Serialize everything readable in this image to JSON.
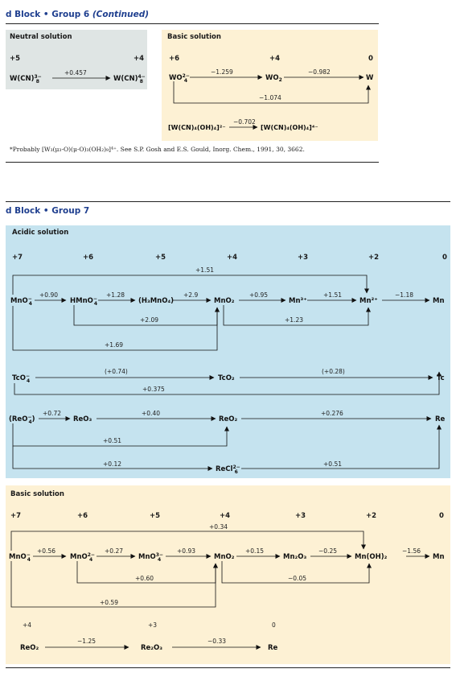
{
  "header_top": {
    "prefix": "d Block",
    "bullet": "•",
    "group": "Group 6",
    "continued": "(Continued)"
  },
  "neutral": {
    "title": "Neutral solution",
    "states": [
      "+5",
      "+4"
    ],
    "species": [
      "W(CN)",
      "W(CN)"
    ],
    "potential": "+0.457"
  },
  "basic6": {
    "title": "Basic solution",
    "states": [
      "+6",
      "+4",
      "0"
    ],
    "species": [
      "WO",
      "WO",
      "W"
    ],
    "potentials": [
      "−1.259",
      "−0.982",
      "−1.074"
    ],
    "complex_left": "[W(CN)₄(OH)₄]²⁻",
    "complex_right": "[W(CN)₄(OH)₄]⁴⁻",
    "complex_potential": "−0.702"
  },
  "footnote": "*Probably [W₃(μ₃-O)(μ-O)₃(OH₂)₉]⁴⁺. See S.P. Gosh and E.S. Gould, Inorg. Chem., 1991, 30, 3662.",
  "header_bottom": {
    "prefix": "d Block",
    "bullet": "•",
    "group": "Group 7"
  },
  "acidic7": {
    "title": "Acidic solution",
    "states": [
      "+7",
      "+6",
      "+5",
      "+4",
      "+3",
      "+2",
      "0"
    ],
    "mn_species": [
      "MnO",
      "HMnO",
      "(H₃MnO₄)",
      "MnO₂",
      "Mn³⁺",
      "Mn²⁺",
      "Mn"
    ],
    "mn_potentials": [
      "+0.90",
      "+1.28",
      "+2.9",
      "+0.95",
      "+1.51",
      "−1.18"
    ],
    "mn_bypass": [
      "+1.51",
      "+2.09",
      "+1.23",
      "+1.69"
    ],
    "tc_species": [
      "TcO",
      "TcO₂",
      "Tc"
    ],
    "tc_potentials": [
      "(+0.74)",
      "(+0.28)",
      "+0.375"
    ],
    "re_species": [
      "(ReO",
      "ReO₃",
      "ReO₂",
      "Re",
      "ReCl"
    ],
    "re_potentials": [
      "+0.72",
      "+0.40",
      "+0.276",
      "+0.51",
      "+0.12",
      "+0.51"
    ]
  },
  "basic7": {
    "title": "Basic solution",
    "states": [
      "+7",
      "+6",
      "+5",
      "+4",
      "+3",
      "+2",
      "0"
    ],
    "mn_species": [
      "MnO",
      "MnO",
      "MnO",
      "MnO₂",
      "Mn₂O₃",
      "Mn(OH)₂",
      "Mn"
    ],
    "mn_potentials": [
      "+0.56",
      "+0.27",
      "+0.93",
      "+0.15",
      "−0.25",
      "−1.56"
    ],
    "mn_bypass": [
      "+0.34",
      "+0.60",
      "−0.05",
      "+0.59"
    ],
    "re_states": [
      "+4",
      "+3",
      "0"
    ],
    "re_species": [
      "ReO₂",
      "Re₂O₃",
      "Re"
    ],
    "re_potentials": [
      "−1.25",
      "−0.33"
    ]
  }
}
